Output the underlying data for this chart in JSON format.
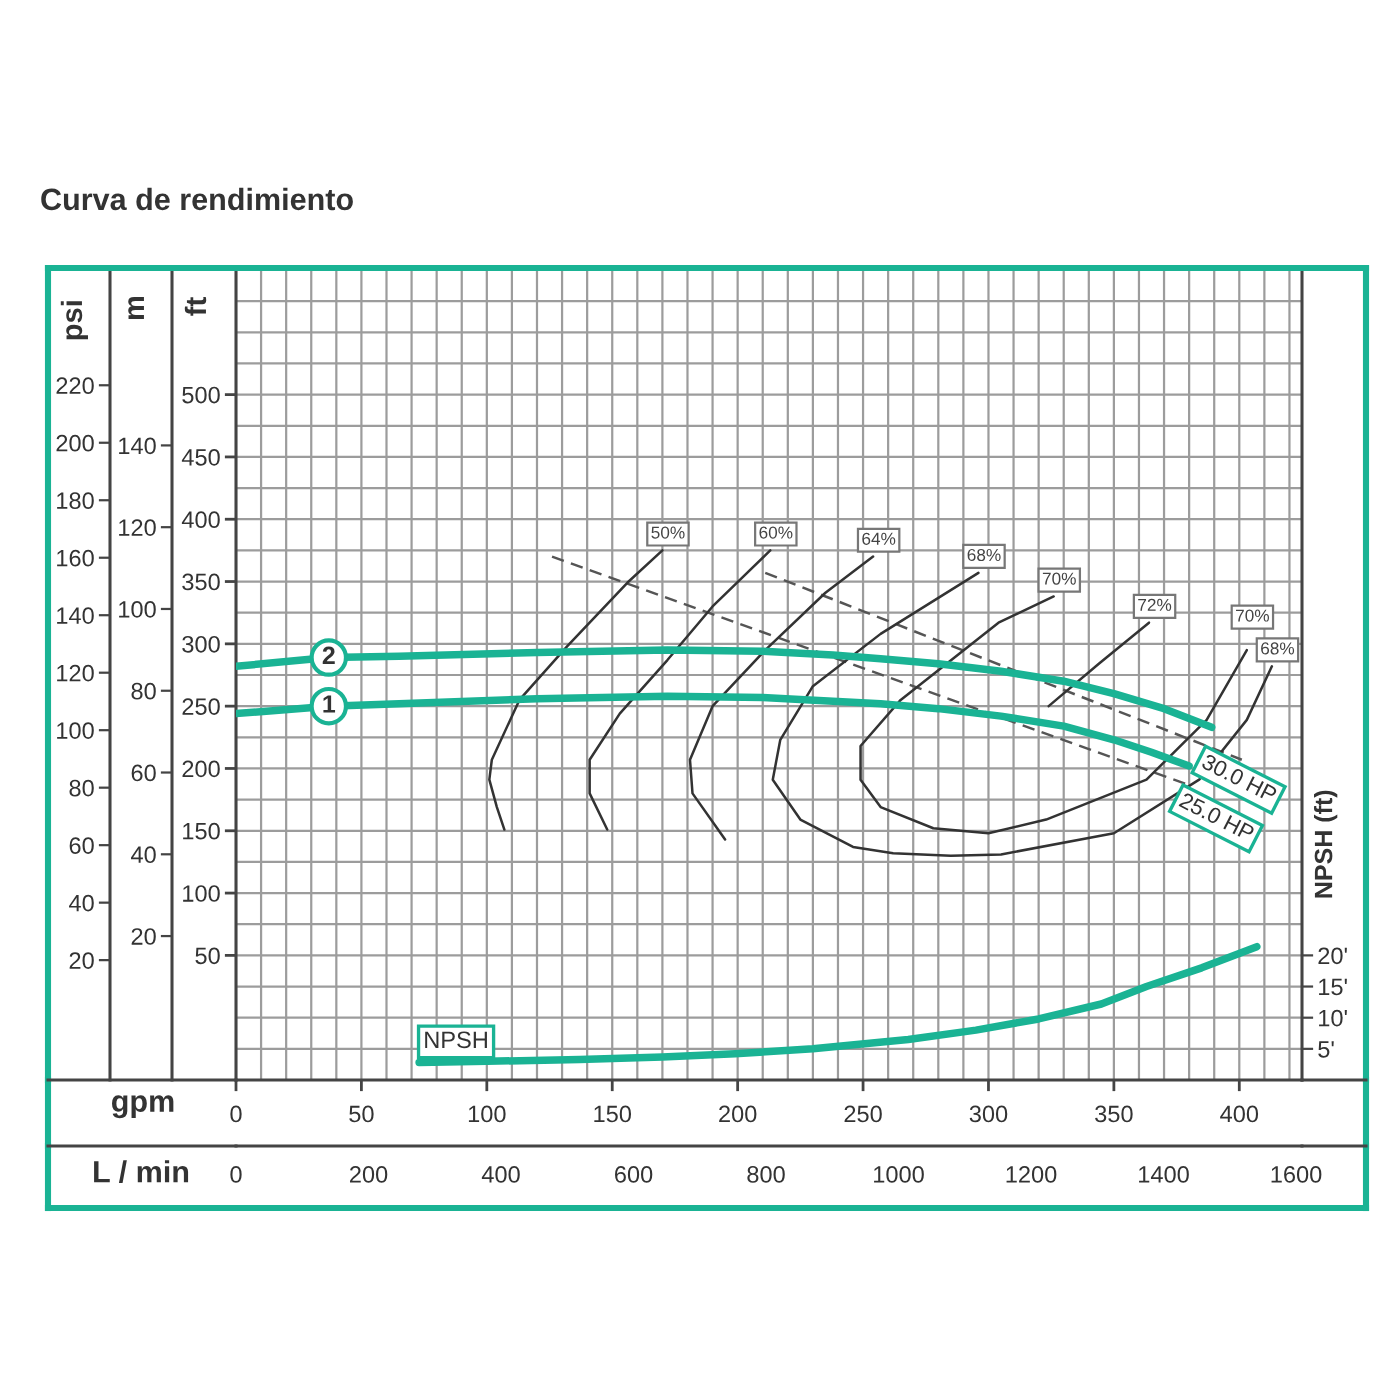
{
  "chart_data": [
    {
      "type": "line",
      "title": "Curva de rendimiento",
      "xlabel": "gpm",
      "ylabel": "ft",
      "y2label": "NPSH (ft)",
      "y3label": "m",
      "x2label": "L / min",
      "xlim": [
        0,
        425
      ],
      "xticks": [
        0,
        {
          "value": 10,
          "label": null
        },
        {
          "value": 20,
          "label": null
        },
        {
          "value": 30,
          "label": null
        },
        {
          "value": 40,
          "label": null
        },
        50,
        {
          "value": 60,
          "label": null
        },
        {
          "value": 70,
          "label": null
        },
        {
          "value": 80,
          "label": null
        },
        {
          "value": 90,
          "label": null
        },
        100,
        {
          "value": 110,
          "label": null
        },
        {
          "value": 120,
          "label": null
        },
        {
          "value": 130,
          "label": null
        },
        {
          "value": 140,
          "label": null
        },
        150,
        {
          "value": 160,
          "label": null
        },
        {
          "value": 170,
          "label": null
        },
        {
          "value": 180,
          "label": null
        },
        {
          "value": 190,
          "label": null
        },
        200,
        {
          "value": 210,
          "label": null
        },
        {
          "value": 220,
          "label": null
        },
        {
          "value": 230,
          "label": null
        },
        {
          "value": 240,
          "label": null
        },
        250,
        {
          "value": 260,
          "label": null
        },
        {
          "value": 270,
          "label": null
        },
        {
          "value": 280,
          "label": null
        },
        {
          "value": 290,
          "label": null
        },
        300,
        {
          "value": 310,
          "label": null
        },
        {
          "value": 320,
          "label": null
        },
        {
          "value": 330,
          "label": null
        },
        {
          "value": 340,
          "label": null
        },
        350,
        {
          "value": 360,
          "label": null
        },
        {
          "value": 370,
          "label": null
        },
        {
          "value": 380,
          "label": null
        },
        {
          "value": 390,
          "label": null
        },
        400,
        {
          "value": 410,
          "label": null
        },
        {
          "value": 420,
          "label": null
        }
      ],
      "ylim": [
        -50,
        600
      ],
      "yticks": [
        {
          "value": -25,
          "label": null
        },
        {
          "value": 0,
          "label": null
        },
        {
          "value": 25,
          "label": null
        },
        50,
        {
          "value": 75,
          "label": null
        },
        100,
        {
          "value": 125,
          "label": null
        },
        150,
        {
          "value": 175,
          "label": null
        },
        200,
        {
          "value": 225,
          "label": null
        },
        250,
        {
          "value": 275,
          "label": null
        },
        300,
        {
          "value": 325,
          "label": null
        },
        350,
        {
          "value": 375,
          "label": null
        },
        400,
        {
          "value": 425,
          "label": null
        },
        450,
        {
          "value": 475,
          "label": null
        },
        500,
        {
          "value": 525,
          "label": null
        },
        {
          "value": 550,
          "label": null
        },
        {
          "value": 575,
          "label": null
        }
      ],
      "y2lim": [
        0,
        130
      ],
      "y2ticks": [
        {
          "value": 5,
          "label": "5'"
        },
        {
          "value": 10,
          "label": "10'"
        },
        {
          "value": 15,
          "label": "15'"
        },
        {
          "value": 20,
          "label": "20'"
        }
      ],
      "y3lim": [
        -15.2,
        182.9
      ],
      "y3ticks": [
        20,
        40,
        60,
        80,
        100,
        120,
        140
      ],
      "x2lim": [
        0,
        1609
      ],
      "x2ticks": [
        0,
        200,
        400,
        600,
        800,
        1000,
        1200,
        1400,
        1600
      ],
      "grid": true,
      "annotations": [
        {
          "text": "30.0 HP",
          "x": 389,
          "y": 233
        },
        {
          "text": "25.0 HP",
          "x": 380,
          "y": 202
        }
      ],
      "series": [
        {
          "name": "2",
          "color": "#1ab394",
          "x": [
            0,
            37,
            65,
            120,
            172,
            210,
            238,
            257,
            280,
            305,
            330,
            350,
            370,
            389
          ],
          "values": [
            282,
            289,
            290,
            293,
            295,
            294,
            291,
            288,
            284,
            278,
            270,
            260,
            248,
            233
          ]
        },
        {
          "name": "1",
          "color": "#1ab394",
          "x": [
            0,
            37,
            65,
            120,
            172,
            210,
            238,
            257,
            280,
            305,
            330,
            350,
            365,
            380
          ],
          "values": [
            244,
            250,
            252,
            256,
            258,
            257,
            254,
            252,
            248,
            242,
            234,
            223,
            213,
            202
          ]
        },
        {
          "name": "NPSH",
          "axis": "y2",
          "color": "#1ab394",
          "x": [
            73,
            100,
            137,
            170,
            199,
            230,
            268,
            295,
            320,
            345,
            363,
            385,
            407
          ],
          "values": [
            2.8,
            3.0,
            3.3,
            3.7,
            4.2,
            5.0,
            6.5,
            8.0,
            9.8,
            12.2,
            15.0,
            18.0,
            21.4
          ]
        },
        {
          "color": "#555555",
          "line_style": "dashed",
          "x": [
            126,
            381
          ],
          "values": [
            370,
            186
          ]
        },
        {
          "color": "#555555",
          "line_style": "dashed",
          "x": [
            211,
            401
          ],
          "values": [
            357,
            207
          ]
        },
        {
          "name": "50%",
          "color": "#333333",
          "x": [
            107,
            104,
            101,
            102,
            113,
            132,
            156,
            170
          ],
          "values": [
            151,
            169,
            191,
            207,
            255,
            298,
            349,
            375
          ]
        },
        {
          "name": "60%",
          "color": "#333333",
          "x": [
            148,
            141,
            141,
            153,
            172,
            190,
            213
          ],
          "values": [
            151,
            180,
            207,
            244,
            287,
            330,
            375
          ]
        },
        {
          "name": "64%",
          "color": "#333333",
          "x": [
            195,
            182,
            181,
            190,
            211,
            235,
            254
          ],
          "values": [
            143,
            180,
            207,
            250,
            295,
            341,
            370
          ]
        },
        {
          "name": "68%",
          "color": "#333333",
          "x": [
            296,
            257,
            230,
            217,
            214,
            225,
            246,
            262,
            285,
            305,
            350,
            384,
            403,
            413
          ],
          "values": [
            357,
            308,
            266,
            223,
            191,
            159,
            137,
            132,
            130,
            131,
            148,
            191,
            239,
            282
          ]
        },
        {
          "name": "70%",
          "color": "#333333",
          "x": [
            326,
            304,
            265,
            249,
            249,
            257,
            278,
            300,
            323,
            363,
            387,
            403
          ],
          "values": [
            338,
            317,
            255,
            218,
            191,
            169,
            152,
            148,
            159,
            191,
            239,
            295
          ]
        },
        {
          "name": "72%",
          "color": "#333333",
          "x": [
            324,
            344,
            364
          ],
          "values": [
            250,
            284,
            317
          ]
        }
      ]
    },
    {
      "type": "line",
      "categories": [
        null
      ],
      "ylabel": "psi",
      "ylim": [
        -21.7,
        260.1
      ],
      "yticks": [
        20,
        40,
        60,
        80,
        100,
        120,
        140,
        160,
        180,
        200,
        220
      ],
      "tick_labels": "y"
    }
  ]
}
